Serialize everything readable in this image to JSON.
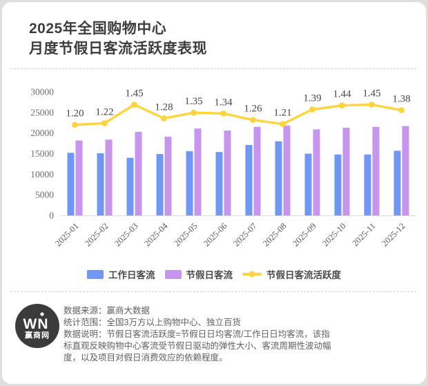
{
  "header": {
    "title_line1": "2025年全国购物中心",
    "title_line2": "月度节假日客流活跃度表现"
  },
  "chart_data": {
    "type": "bar",
    "title": "2025年全国购物中心月度节假日客流活跃度表现",
    "categories": [
      "2025-01",
      "2025-02",
      "2025-03",
      "2025-04",
      "2025-05",
      "2025-06",
      "2025-07",
      "2025-08",
      "2025-09",
      "2025-10",
      "2025-11",
      "2025-12"
    ],
    "series": [
      {
        "name": "工作日客流",
        "type": "bar",
        "color": "#6F97F3",
        "values": [
          15200,
          15100,
          14000,
          14900,
          15600,
          15400,
          17100,
          18000,
          15000,
          14800,
          14800,
          15700
        ]
      },
      {
        "name": "节假日客流",
        "type": "bar",
        "color": "#C794EE",
        "values": [
          18200,
          18400,
          20300,
          19100,
          21100,
          20600,
          21500,
          21800,
          20900,
          21300,
          21500,
          21700
        ]
      },
      {
        "name": "节假日客流活跃度",
        "type": "line",
        "color": "#FFD43B",
        "values": [
          1.2,
          1.22,
          1.45,
          1.28,
          1.35,
          1.34,
          1.26,
          1.21,
          1.39,
          1.44,
          1.45,
          1.38
        ]
      }
    ],
    "xlabel": "",
    "ylabel": "",
    "ylim": [
      0,
      30000
    ],
    "yticks": [
      0,
      5000,
      10000,
      15000,
      20000,
      25000,
      30000
    ],
    "grid": false,
    "legend_position": "bottom",
    "line_label_format": "0.00"
  },
  "footer": {
    "logo": {
      "mark": "WN",
      "name": "赢商网"
    },
    "notes": [
      "数据来源：赢商大数据",
      "统计范围：全国3万方以上购物中心、独立百货",
      "数据说明：节假日客流活跃度=节假日日均客流/工作日日均客流，该指标直观反映购物中心客流受节假日驱动的弹性大小、客流周期性波动幅度，以及项目对假日消费效应的依赖程度。"
    ]
  },
  "colors": {
    "weekday_bar": "#6F97F3",
    "holiday_bar": "#C794EE",
    "ratio_line": "#FFD43B",
    "title_text": "#3d3d3d",
    "axis_line": "#dcdcdc",
    "card_bg": "#ffffff",
    "page_bg": "#dededc",
    "logo_bg": "#3b3b3b"
  }
}
